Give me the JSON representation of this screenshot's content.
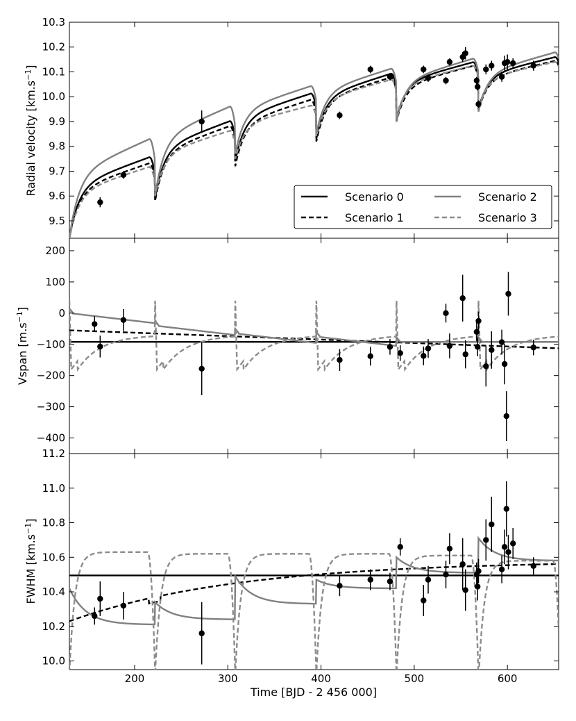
{
  "colors": {
    "scenario0": "#000000",
    "scenario1": "#000000",
    "scenario2": "#808080",
    "scenario3": "#8c8c8c",
    "points": "#000000"
  },
  "chart_data": {
    "type": "line",
    "shared_x": {
      "label": "Time [BJD - 2 456 000]",
      "xlim": [
        130,
        655
      ],
      "ticks": [
        200,
        300,
        400,
        500,
        600
      ],
      "tick_labels": [
        "200",
        "300",
        "400",
        "500",
        "600"
      ]
    },
    "legend": {
      "location": "lower-right of top panel",
      "entries": [
        {
          "name": "Scenario 0",
          "style": "solid",
          "color": "#000000"
        },
        {
          "name": "Scenario 2",
          "style": "solid",
          "color": "#808080"
        },
        {
          "name": "Scenario 1",
          "style": "dashed",
          "color": "#000000"
        },
        {
          "name": "Scenario 3",
          "style": "dashed",
          "color": "#8c8c8c"
        }
      ]
    },
    "panels": [
      {
        "name": "rv",
        "ylabel_main": "Radial velocity [km.s",
        "ylabel_sup": "−1",
        "ylabel_end": "]",
        "ylim": [
          9.43,
          10.3
        ],
        "ticks": [
          9.5,
          9.6,
          9.7,
          9.8,
          9.9,
          10.0,
          10.1,
          10.2,
          10.3
        ],
        "tick_labels": [
          "9.5",
          "9.6",
          "9.7",
          "9.8",
          "9.9",
          "10.0",
          "10.1",
          "10.2",
          "10.3"
        ],
        "points": [
          {
            "x": 163,
            "y": 9.575,
            "err": 0.02
          },
          {
            "x": 188,
            "y": 9.685,
            "err": 0.015
          },
          {
            "x": 272,
            "y": 9.9,
            "err": 0.045
          },
          {
            "x": 420,
            "y": 9.925,
            "err": 0.015
          },
          {
            "x": 453,
            "y": 10.11,
            "err": 0.015
          },
          {
            "x": 474,
            "y": 10.08,
            "err": 0.015
          },
          {
            "x": 510,
            "y": 10.11,
            "err": 0.015
          },
          {
            "x": 515,
            "y": 10.075,
            "err": 0.015
          },
          {
            "x": 534,
            "y": 10.065,
            "err": 0.015
          },
          {
            "x": 538,
            "y": 10.14,
            "err": 0.015
          },
          {
            "x": 552,
            "y": 10.16,
            "err": 0.02
          },
          {
            "x": 555,
            "y": 10.175,
            "err": 0.025
          },
          {
            "x": 567,
            "y": 10.065,
            "err": 0.015
          },
          {
            "x": 568,
            "y": 10.04,
            "err": 0.015
          },
          {
            "x": 569,
            "y": 9.97,
            "err": 0.015
          },
          {
            "x": 577,
            "y": 10.11,
            "err": 0.02
          },
          {
            "x": 583,
            "y": 10.125,
            "err": 0.02
          },
          {
            "x": 594,
            "y": 10.08,
            "err": 0.02
          },
          {
            "x": 597,
            "y": 10.135,
            "err": 0.03
          },
          {
            "x": 600,
            "y": 10.14,
            "err": 0.03
          },
          {
            "x": 606,
            "y": 10.135,
            "err": 0.02
          },
          {
            "x": 628,
            "y": 10.125,
            "err": 0.02
          }
        ],
        "series": [
          {
            "name": "Scenario 0",
            "y0": 9.43,
            "ystart": 9.48,
            "amp": 0.032,
            "drift_start": 0.000225,
            "drift_end": 0.00018,
            "dip": -0.045,
            "dip_width": 3
          },
          {
            "name": "Scenario 1",
            "y0": 9.43,
            "ystart": 9.475,
            "amp": 0.03,
            "drift_start": 0.00021,
            "drift_end": 0.00018,
            "dip": -0.05,
            "dip_width": 3
          },
          {
            "name": "Scenario 2",
            "y0": 9.43,
            "ystart": 9.49,
            "amp": 0.038,
            "drift_start": 0.00026,
            "drift_end": 0.00019,
            "dip": -0.06,
            "dip_width": 3
          },
          {
            "name": "Scenario 3",
            "y0": 9.43,
            "ystart": 9.47,
            "amp": 0.027,
            "drift_start": 0.0002,
            "drift_end": 0.00018,
            "dip": -0.035,
            "dip_width": 3
          }
        ]
      },
      {
        "name": "vspan",
        "ylabel_main": "Vspan [m.s",
        "ylabel_sup": "−1",
        "ylabel_end": "]",
        "ylim": [
          -450,
          240
        ],
        "ticks": [
          -400,
          -300,
          -200,
          -100,
          0,
          100,
          200
        ],
        "tick_labels": [
          "−400",
          "−300",
          "−200",
          "−100",
          "0",
          "100",
          "200"
        ],
        "points": [
          {
            "x": 157,
            "y": -35,
            "err": 25
          },
          {
            "x": 163,
            "y": -107,
            "err": 35
          },
          {
            "x": 188,
            "y": -22,
            "err": 35
          },
          {
            "x": 272,
            "y": -178,
            "err": 85
          },
          {
            "x": 420,
            "y": -150,
            "err": 35
          },
          {
            "x": 453,
            "y": -138,
            "err": 30
          },
          {
            "x": 474,
            "y": -108,
            "err": 25
          },
          {
            "x": 485,
            "y": -128,
            "err": 25
          },
          {
            "x": 510,
            "y": -137,
            "err": 30
          },
          {
            "x": 515,
            "y": -113,
            "err": 30
          },
          {
            "x": 534,
            "y": 0,
            "err": 30
          },
          {
            "x": 538,
            "y": -105,
            "err": 40
          },
          {
            "x": 552,
            "y": 48,
            "err": 75
          },
          {
            "x": 555,
            "y": -132,
            "err": 45
          },
          {
            "x": 567,
            "y": -60,
            "err": 30
          },
          {
            "x": 568,
            "y": -108,
            "err": 30
          },
          {
            "x": 569,
            "y": -25,
            "err": 30
          },
          {
            "x": 577,
            "y": -170,
            "err": 65
          },
          {
            "x": 583,
            "y": -118,
            "err": 60
          },
          {
            "x": 594,
            "y": -93,
            "err": 40
          },
          {
            "x": 597,
            "y": -163,
            "err": 65
          },
          {
            "x": 599,
            "y": -330,
            "err": 80
          },
          {
            "x": 601,
            "y": 62,
            "err": 70
          },
          {
            "x": 628,
            "y": -110,
            "err": 25
          }
        ]
      },
      {
        "name": "fwhm",
        "ylabel_main": "FWHM [km.s",
        "ylabel_sup": "−1",
        "ylabel_end": "]",
        "ylim": [
          9.95,
          11.2
        ],
        "ticks": [
          10.0,
          10.2,
          10.4,
          10.6,
          10.8,
          11.0,
          11.2
        ],
        "tick_labels": [
          "10.0",
          "10.2",
          "10.4",
          "10.6",
          "10.8",
          "11.0",
          "11.2"
        ],
        "points": [
          {
            "x": 157,
            "y": 10.26,
            "err": 0.05
          },
          {
            "x": 163,
            "y": 10.36,
            "err": 0.1
          },
          {
            "x": 188,
            "y": 10.32,
            "err": 0.08
          },
          {
            "x": 272,
            "y": 10.16,
            "err": 0.18
          },
          {
            "x": 420,
            "y": 10.435,
            "err": 0.06
          },
          {
            "x": 453,
            "y": 10.47,
            "err": 0.06
          },
          {
            "x": 474,
            "y": 10.46,
            "err": 0.05
          },
          {
            "x": 485,
            "y": 10.66,
            "err": 0.05
          },
          {
            "x": 510,
            "y": 10.35,
            "err": 0.09
          },
          {
            "x": 515,
            "y": 10.47,
            "err": 0.08
          },
          {
            "x": 534,
            "y": 10.5,
            "err": 0.08
          },
          {
            "x": 538,
            "y": 10.65,
            "err": 0.09
          },
          {
            "x": 552,
            "y": 10.56,
            "err": 0.15
          },
          {
            "x": 555,
            "y": 10.41,
            "err": 0.12
          },
          {
            "x": 567,
            "y": 10.5,
            "err": 0.07
          },
          {
            "x": 568,
            "y": 10.43,
            "err": 0.08
          },
          {
            "x": 569,
            "y": 10.52,
            "err": 0.07
          },
          {
            "x": 577,
            "y": 10.7,
            "err": 0.12
          },
          {
            "x": 583,
            "y": 10.79,
            "err": 0.16
          },
          {
            "x": 594,
            "y": 10.53,
            "err": 0.08
          },
          {
            "x": 597,
            "y": 10.66,
            "err": 0.1
          },
          {
            "x": 599,
            "y": 10.88,
            "err": 0.16
          },
          {
            "x": 601,
            "y": 10.63,
            "err": 0.1
          },
          {
            "x": 606,
            "y": 10.68,
            "err": 0.09
          },
          {
            "x": 628,
            "y": 10.55,
            "err": 0.05
          }
        ]
      }
    ]
  }
}
